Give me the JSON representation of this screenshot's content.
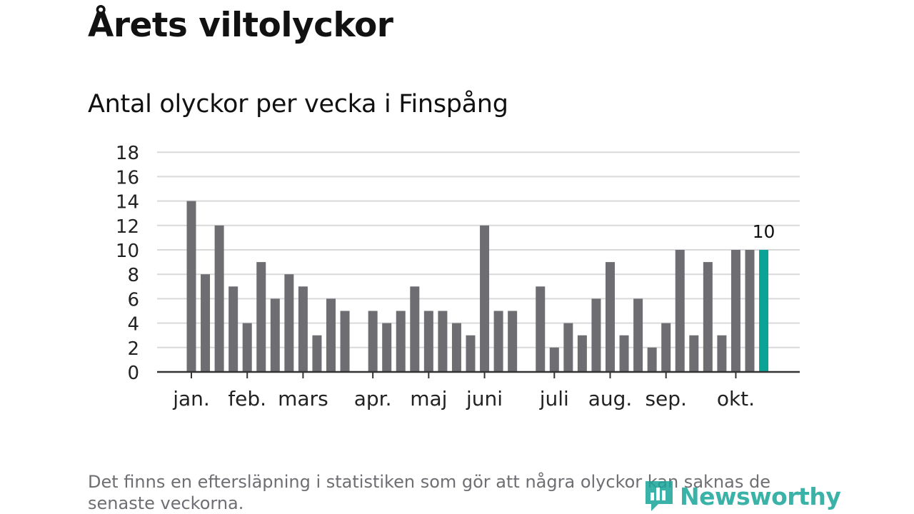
{
  "title": "Årets viltolyckor",
  "chart_data": {
    "type": "bar",
    "title": "Antal olyckor per vecka i Finspång",
    "xlabel": "",
    "ylabel": "",
    "ylim": [
      0,
      18
    ],
    "yticks": [
      "0",
      "2",
      "4",
      "6",
      "8",
      "10",
      "12",
      "14",
      "16",
      "18"
    ],
    "week_count": 44,
    "values": [
      null,
      null,
      14,
      8,
      12,
      7,
      4,
      9,
      6,
      8,
      7,
      3,
      6,
      5,
      null,
      5,
      4,
      5,
      7,
      5,
      5,
      4,
      3,
      12,
      5,
      5,
      null,
      7,
      2,
      4,
      3,
      6,
      9,
      3,
      6,
      2,
      4,
      10,
      3,
      9,
      3,
      10,
      10,
      10
    ],
    "month_labels": [
      {
        "label": "jan.",
        "week": 2
      },
      {
        "label": "feb.",
        "week": 6
      },
      {
        "label": "mars",
        "week": 10
      },
      {
        "label": "apr.",
        "week": 15
      },
      {
        "label": "maj",
        "week": 19
      },
      {
        "label": "juni",
        "week": 23
      },
      {
        "label": "juli",
        "week": 28
      },
      {
        "label": "aug.",
        "week": 32
      },
      {
        "label": "sep.",
        "week": 36
      },
      {
        "label": "okt.",
        "week": 41
      }
    ],
    "highlight_label": "10",
    "bar_color": "#6e6d72",
    "highlight_color": "#0aa496",
    "grid": true
  },
  "footnote": "Det finns en eftersläpning i statistiken som gör att några olyckor kan saknas de senaste veckorna.",
  "brand": {
    "name": "Newsworthy",
    "icon": "newsworthy-logo-icon",
    "color": "#1aa59a"
  }
}
